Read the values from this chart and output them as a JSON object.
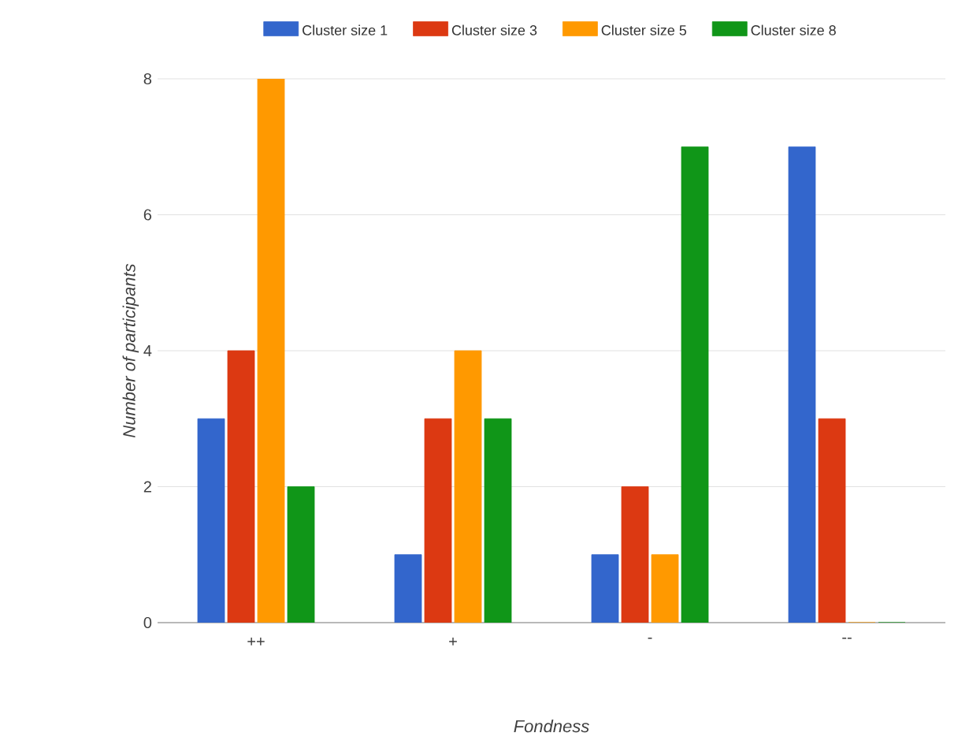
{
  "chart_data": {
    "type": "bar",
    "xlabel": "Fondness",
    "ylabel": "Number of participants",
    "categories": [
      "++",
      "+",
      "-",
      "--"
    ],
    "series": [
      {
        "name": "Cluster size 1",
        "color": "#3366cc",
        "values": [
          3,
          1,
          1,
          7
        ]
      },
      {
        "name": "Cluster size 3",
        "color": "#dc3912",
        "values": [
          4,
          3,
          2,
          3
        ]
      },
      {
        "name": "Cluster size 5",
        "color": "#ff9900",
        "values": [
          8,
          4,
          1,
          0
        ]
      },
      {
        "name": "Cluster size 8",
        "color": "#109618",
        "values": [
          2,
          3,
          7,
          0
        ]
      }
    ],
    "ylim": [
      0,
      8
    ],
    "yticks": [
      0,
      2,
      4,
      6,
      8
    ],
    "grid": "y",
    "legend": "top"
  }
}
